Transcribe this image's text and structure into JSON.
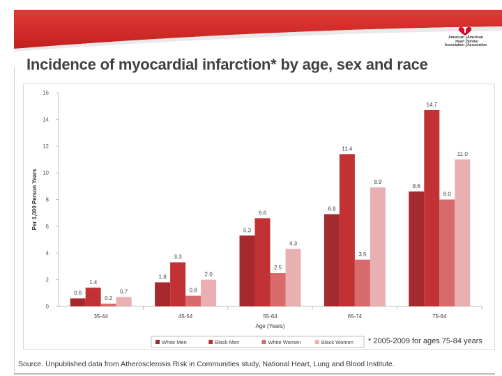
{
  "title": "Incidence of myocardial infarction* by age, sex and race",
  "logo": {
    "left_lines": [
      "American",
      "Heart",
      "Association"
    ],
    "right_lines": [
      "American",
      "Stroke",
      "Association"
    ]
  },
  "footnote": "* 2005-2009 for ages 75-84 years",
  "source": "Source. Unpublished data from Atherosclerosis Risk in Communities study, National Heart, Lung and Blood Institute.",
  "colors": {
    "banner": "#d42c2c",
    "white_men": "#a52a2f",
    "black_men": "#c23234",
    "white_women": "#d76b6b",
    "black_women": "#e8b0b0"
  },
  "chart_data": {
    "type": "bar",
    "title": "",
    "xlabel": "Age (Years)",
    "ylabel": "Per 1,000 Person Years",
    "ylim": [
      0,
      16
    ],
    "yticks": [
      0,
      2,
      4,
      6,
      8,
      10,
      12,
      14,
      16
    ],
    "categories": [
      "35-44",
      "45-54",
      "55-64",
      "65-74",
      "75-84"
    ],
    "series": [
      {
        "name": "White Men",
        "color": "#a52a2f",
        "values": [
          0.6,
          1.8,
          5.3,
          6.9,
          8.6
        ],
        "labels": [
          "0.6",
          "1.8",
          "5.3",
          "6.9",
          "8.6"
        ]
      },
      {
        "name": "Black Men",
        "color": "#c23234",
        "values": [
          1.4,
          3.3,
          6.6,
          11.4,
          14.7
        ],
        "labels": [
          "1.4",
          "3.3",
          "6.6",
          "11.4",
          "14.7"
        ]
      },
      {
        "name": "White Women",
        "color": "#d76b6b",
        "values": [
          0.2,
          0.8,
          2.5,
          3.5,
          8.0
        ],
        "labels": [
          "0.2",
          "0.8",
          "2.5",
          "3.5",
          "8.0"
        ]
      },
      {
        "name": "Black Women",
        "color": "#e8b0b0",
        "values": [
          0.7,
          2.0,
          4.3,
          8.9,
          11.0
        ],
        "labels": [
          "0.7",
          "2.0",
          "4.3",
          "8.9",
          "11.0"
        ]
      }
    ],
    "grid": false,
    "legend_position": "bottom"
  }
}
